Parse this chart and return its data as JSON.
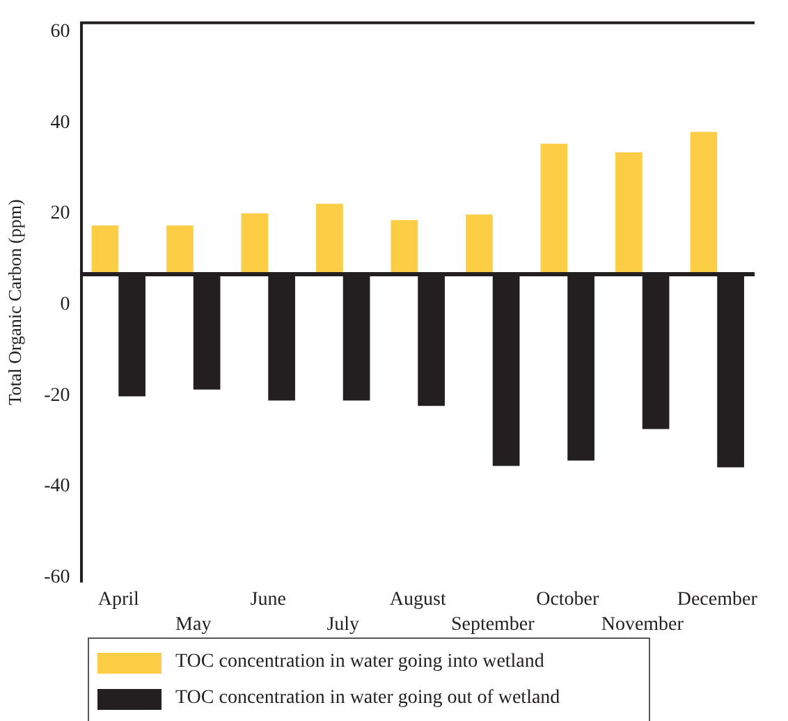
{
  "chart_data": {
    "type": "bar",
    "ylabel": "Total Organic Carbon (ppm)",
    "categories": [
      "April",
      "May",
      "June",
      "July",
      "August",
      "September",
      "October",
      "November",
      "December"
    ],
    "series": [
      {
        "name": "TOC concentration in water going into wetland",
        "color": "#fdcd45",
        "base": [
          6.7,
          6.7,
          6.7,
          6.7,
          6.7,
          6.7,
          6.7,
          6.7,
          6.7
        ],
        "values": [
          10.7,
          10.7,
          13.4,
          15.5,
          11.9,
          13.1,
          28.7,
          26.8,
          31.3
        ]
      },
      {
        "name": "TOC concentration in water going out of wetland",
        "color": "#231f20",
        "base": [
          6.7,
          6.7,
          6.7,
          6.7,
          6.7,
          6.7,
          6.7,
          6.7,
          6.7
        ],
        "values": [
          -26.9,
          -25.4,
          -27.8,
          -27.8,
          -29.0,
          -42.2,
          -41.0,
          -34.1,
          -42.5
        ]
      }
    ],
    "ylim": [
      -61,
      62
    ],
    "yticks": [
      -60,
      -40,
      -20,
      0,
      20,
      40,
      60
    ],
    "ref_lines": [
      {
        "axis": "y",
        "value": 6.7,
        "color": "#231f20"
      }
    ],
    "grid": false,
    "legend": "bottom"
  }
}
